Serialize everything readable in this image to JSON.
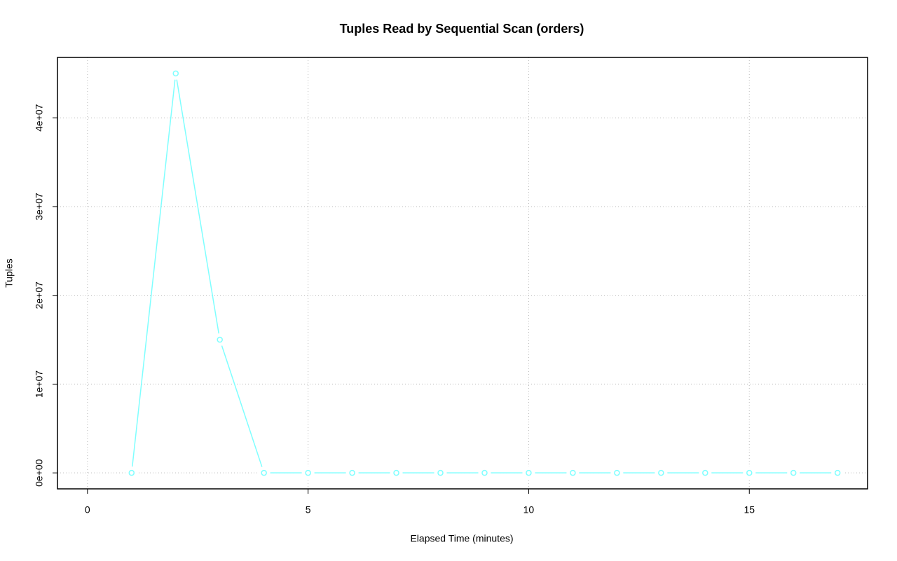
{
  "chart_data": {
    "type": "line",
    "title": "Tuples Read by Sequential Scan (orders)",
    "x_label": "Elapsed Time (minutes)",
    "y_label": "Tuples",
    "x": [
      1,
      2,
      3,
      4,
      5,
      6,
      7,
      8,
      9,
      10,
      11,
      12,
      13,
      14,
      15,
      16,
      17
    ],
    "series": [
      {
        "color": "#7fffff",
        "values": [
          0,
          45000000,
          15000000,
          0,
          0,
          0,
          0,
          0,
          0,
          0,
          0,
          0,
          0,
          0,
          0,
          0,
          0
        ]
      }
    ],
    "xlim": [
      -0.68,
      17.68
    ],
    "ylim": [
      -1800000,
      46800000
    ],
    "xticks": [
      0,
      5,
      10,
      15
    ],
    "yticks": [
      {
        "value": 0,
        "label": "0e+00"
      },
      {
        "value": 10000000,
        "label": "1e+07"
      },
      {
        "value": 20000000,
        "label": "2e+07"
      },
      {
        "value": 30000000,
        "label": "3e+07"
      },
      {
        "value": 40000000,
        "label": "4e+07"
      }
    ],
    "grid": true
  }
}
